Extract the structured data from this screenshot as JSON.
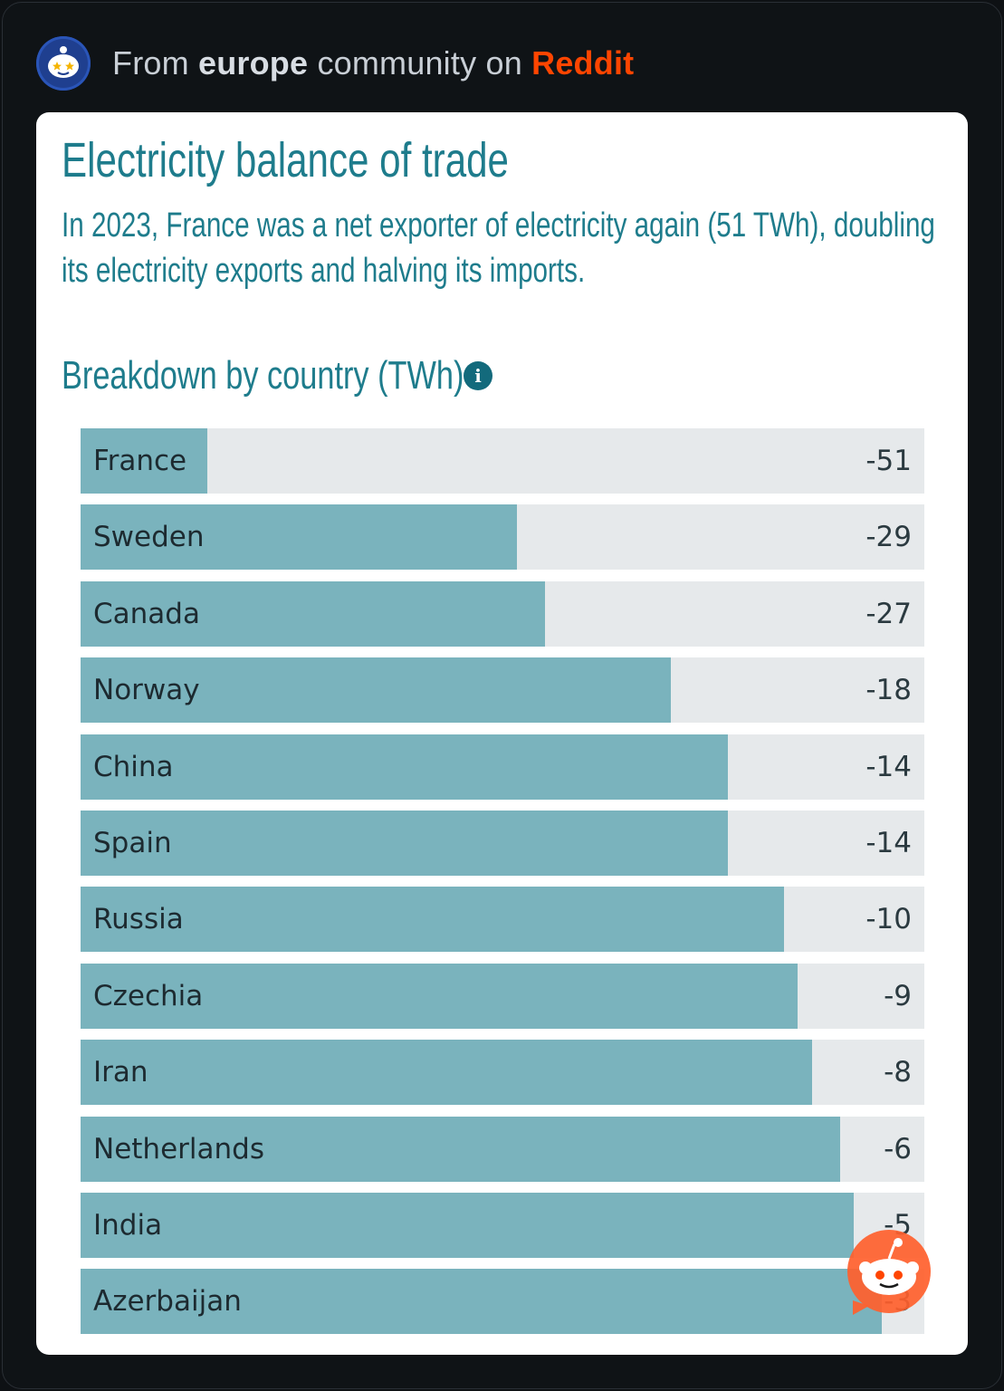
{
  "header": {
    "prefix": "From",
    "community": "europe",
    "middle": "community on",
    "brand": "Reddit"
  },
  "card": {
    "title": "Electricity balance of trade",
    "subtitle": "In 2023, France was a net exporter of electricity again (51 TWh), doubling its electricity exports and halving its imports.",
    "section_label": "Breakdown by country (TWh)",
    "info_icon": "i"
  },
  "colors": {
    "accent": "#1e7c8c",
    "bar_fill": "#7ab3bd",
    "bar_track": "#e6e9eb",
    "reddit_orange": "#ff4500"
  },
  "chart_data": {
    "type": "bar",
    "orientation": "horizontal",
    "title": "Breakdown by country (TWh)",
    "xlim": [
      -60,
      0
    ],
    "categories": [
      "France",
      "Sweden",
      "Canada",
      "Norway",
      "China",
      "Spain",
      "Russia",
      "Czechia",
      "Iran",
      "Netherlands",
      "India",
      "Azerbaijan"
    ],
    "values": [
      -51,
      -29,
      -27,
      -18,
      -14,
      -14,
      -10,
      -9,
      -8,
      -6,
      -5,
      -3
    ],
    "value_labels": [
      "-51",
      "-29",
      "-27",
      "-18",
      "-14",
      "-14",
      "-10",
      "-9",
      "-8",
      "-6",
      "-5",
      "-3"
    ]
  }
}
